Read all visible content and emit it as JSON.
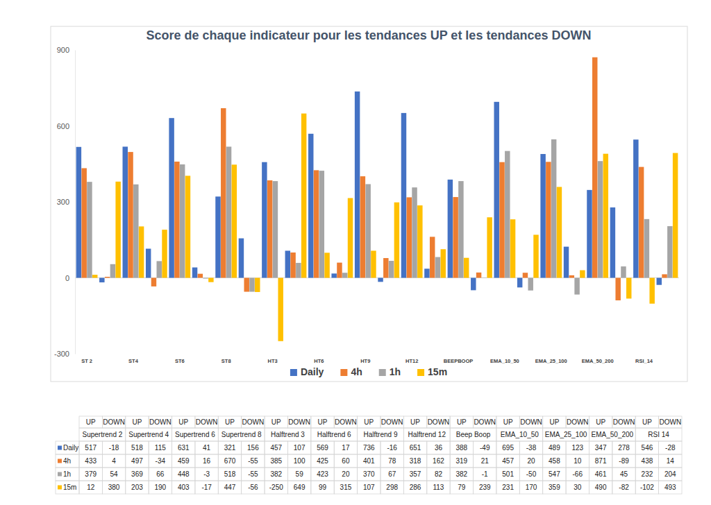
{
  "chart_data": {
    "type": "bar",
    "title": "Score de chaque indicateur pour les tendances UP et les tendances DOWN",
    "categories": [
      "ST 2",
      null,
      "ST4",
      null,
      "ST6",
      null,
      "ST8",
      null,
      "HT3",
      null,
      "HT6",
      null,
      "HT9",
      null,
      "HT12",
      null,
      "BEEPBOOP",
      null,
      "EMA_10_50",
      null,
      "EMA_25_100",
      null,
      "EMA_50_200",
      null,
      "RSI_14",
      null
    ],
    "series": [
      {
        "name": "Daily",
        "color": "#4472c4",
        "values": [
          517,
          -18,
          518,
          115,
          631,
          41,
          321,
          156,
          457,
          107,
          569,
          17,
          736,
          -16,
          651,
          36,
          388,
          -49,
          695,
          -38,
          489,
          123,
          347,
          278,
          546,
          -28
        ]
      },
      {
        "name": "4h",
        "color": "#ed7d31",
        "values": [
          433,
          4,
          497,
          -34,
          459,
          16,
          670,
          -55,
          385,
          100,
          425,
          60,
          401,
          78,
          318,
          162,
          319,
          21,
          457,
          20,
          458,
          10,
          871,
          -89,
          438,
          14
        ]
      },
      {
        "name": "1h",
        "color": "#a5a5a5",
        "values": [
          379,
          54,
          369,
          66,
          448,
          -3,
          518,
          -55,
          382,
          59,
          423,
          20,
          370,
          67,
          357,
          82,
          382,
          -1,
          501,
          -50,
          547,
          -66,
          461,
          45,
          232,
          204
        ]
      },
      {
        "name": "15m",
        "color": "#ffc000",
        "values": [
          12,
          380,
          203,
          190,
          403,
          -17,
          447,
          -56,
          -250,
          649,
          99,
          315,
          107,
          298,
          286,
          113,
          79,
          239,
          231,
          170,
          359,
          30,
          490,
          -82,
          -102,
          493
        ]
      }
    ],
    "ylim": [
      -300,
      900
    ],
    "yticks": [
      -300,
      0,
      300,
      600,
      900
    ],
    "grid": false,
    "legend": "bottom"
  },
  "table": {
    "columns": [
      "Supertrend 2",
      "Supertrend 4",
      "Supertrend 6",
      "Supertrend 8",
      "Halftrend 3",
      "Halftrend 6",
      "Halftrend 9",
      "Halftrend 12",
      "Beep Boop",
      "EMA_10_50",
      "EMA_25_100",
      "EMA_50_200",
      "RSI 14"
    ],
    "subcolumns": [
      "UP",
      "DOWN"
    ]
  }
}
